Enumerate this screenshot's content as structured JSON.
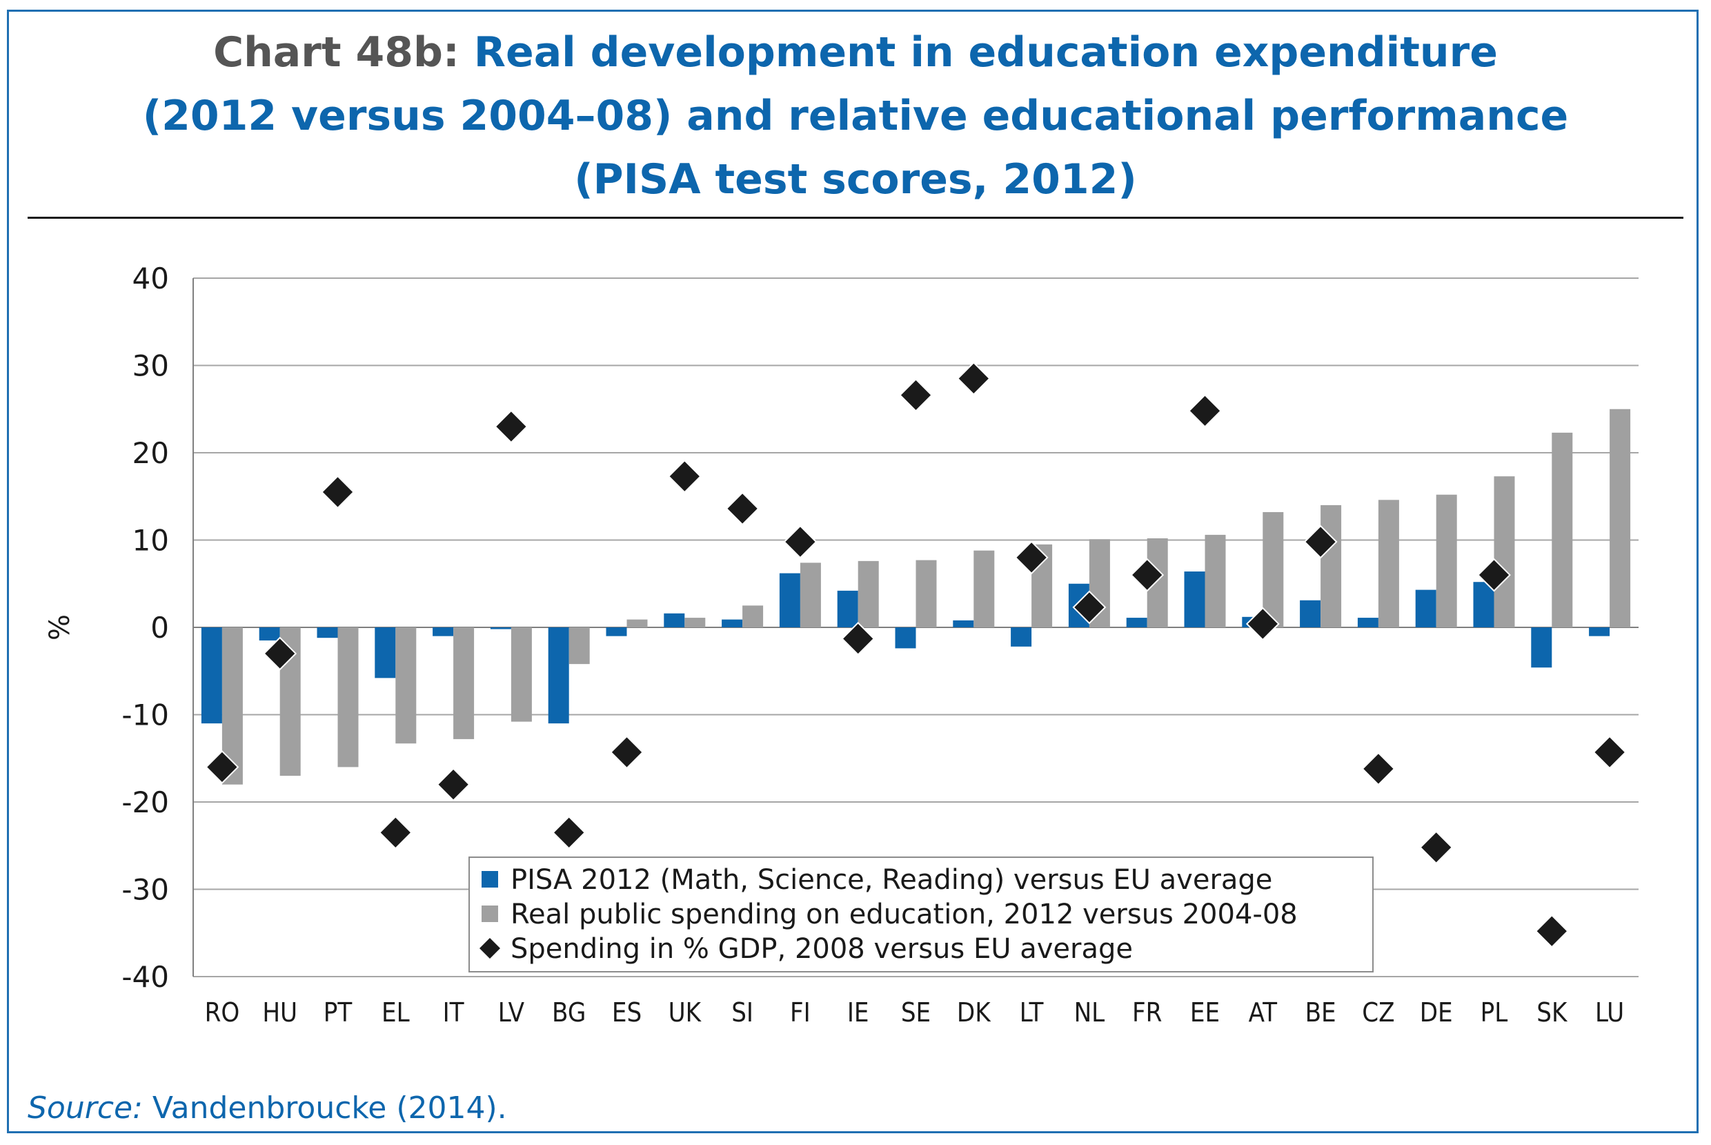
{
  "title": {
    "prefix": "Chart 48b:",
    "line1": "Real development in education expenditure",
    "line2": "(2012 versus 2004–08) and relative educational performance",
    "line3": "(PISA test scores, 2012)"
  },
  "source": {
    "label": "Source:",
    "text": "Vandenbroucke (2014)."
  },
  "colors": {
    "pisa": "#0d66ad",
    "spending": "#a0a0a0",
    "gdp": "#1a1a1a",
    "grid": "#a6a6a6",
    "title": "#0d66ad"
  },
  "chart_data": {
    "type": "bar",
    "ylabel": "%",
    "ylim": [
      -40,
      40
    ],
    "yticks": [
      40,
      30,
      20,
      10,
      0,
      -10,
      -20,
      -30,
      -40
    ],
    "grid": true,
    "legend_position": "bottom-center",
    "categories": [
      "RO",
      "HU",
      "PT",
      "EL",
      "IT",
      "LV",
      "BG",
      "ES",
      "UK",
      "SI",
      "FI",
      "IE",
      "SE",
      "DK",
      "LT",
      "NL",
      "FR",
      "EE",
      "AT",
      "BE",
      "CZ",
      "DE",
      "PL",
      "SK",
      "LU"
    ],
    "series": [
      {
        "name": "PISA 2012 (Math, Science, Reading) versus EU average",
        "type": "bar",
        "color_key": "pisa",
        "values": [
          -11,
          -1.5,
          -1.2,
          -5.8,
          -1,
          -0.2,
          -11,
          -1,
          1.6,
          0.9,
          6.2,
          4.2,
          -2.4,
          0.8,
          -2.2,
          5,
          1.1,
          6.4,
          1.2,
          3.1,
          1.1,
          4.3,
          5.2,
          -4.6,
          -1
        ]
      },
      {
        "name": "Real public spending on education, 2012 versus 2004-08",
        "type": "bar",
        "color_key": "spending",
        "values": [
          -18,
          -17,
          -16,
          -13.3,
          -12.8,
          -10.8,
          -4.2,
          0.9,
          1.1,
          2.5,
          7.4,
          7.6,
          7.7,
          8.8,
          9.5,
          10.1,
          10.2,
          10.6,
          13.2,
          14,
          14.6,
          15.2,
          17.3,
          22.3,
          25
        ]
      },
      {
        "name": "Spending in % GDP, 2008 versus EU average",
        "type": "scatter",
        "color_key": "gdp",
        "values": [
          -16,
          -3,
          15.5,
          -23.5,
          -18,
          23,
          -23.5,
          -14.3,
          17.3,
          13.6,
          9.8,
          -1.3,
          26.6,
          28.5,
          8,
          2.3,
          6,
          24.8,
          0.4,
          9.8,
          -16.2,
          -25.2,
          6,
          -34.8,
          -14.3
        ]
      }
    ]
  }
}
